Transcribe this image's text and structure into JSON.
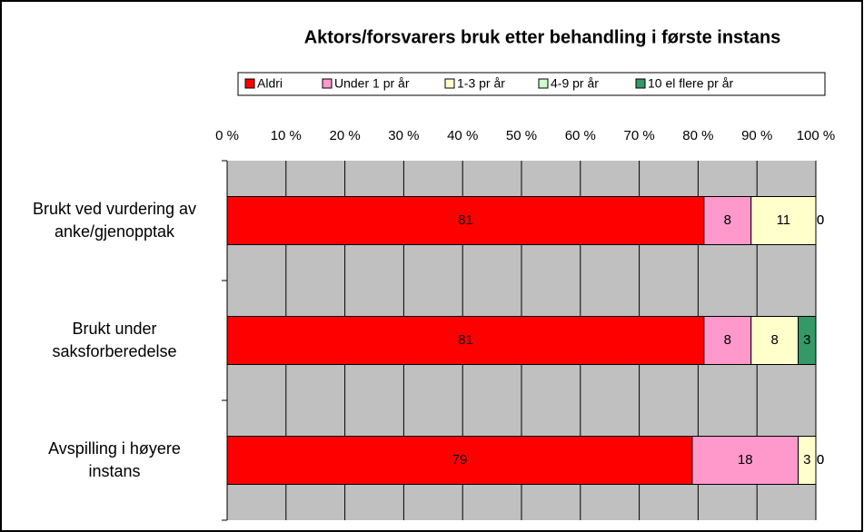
{
  "chart_data": {
    "type": "stacked-barh",
    "title": "Aktors/forsvarers bruk etter behandling i første instans",
    "categories": [
      "Brukt ved vurdering av anke/gjenopptak",
      "Brukt under saksforberedelse",
      "Avspilling i høyere instans"
    ],
    "series": [
      {
        "name": "Aldri",
        "color": "#ff0000",
        "values": [
          81,
          81,
          79
        ]
      },
      {
        "name": "Under 1 pr år",
        "color": "#ff99cc",
        "values": [
          8,
          8,
          18
        ]
      },
      {
        "name": "1-3 pr år",
        "color": "#ffffcc",
        "values": [
          11,
          8,
          3
        ]
      },
      {
        "name": "4-9 pr år",
        "color": "#ccffcc",
        "values": [
          0,
          0,
          0
        ]
      },
      {
        "name": "10 el flere pr år",
        "color": "#339966",
        "values": [
          0,
          3,
          0
        ]
      }
    ],
    "xlim": [
      0,
      100
    ],
    "xticks": [
      {
        "value": 0,
        "label": "0 %"
      },
      {
        "value": 10,
        "label": "10 %"
      },
      {
        "value": 20,
        "label": "20 %"
      },
      {
        "value": 30,
        "label": "30 %"
      },
      {
        "value": 40,
        "label": "40 %"
      },
      {
        "value": 50,
        "label": "50 %"
      },
      {
        "value": 60,
        "label": "60 %"
      },
      {
        "value": 70,
        "label": "70 %"
      },
      {
        "value": 80,
        "label": "80 %"
      },
      {
        "value": 90,
        "label": "90 %"
      },
      {
        "value": 100,
        "label": "100 %"
      }
    ],
    "grid": true,
    "legend": "top"
  }
}
